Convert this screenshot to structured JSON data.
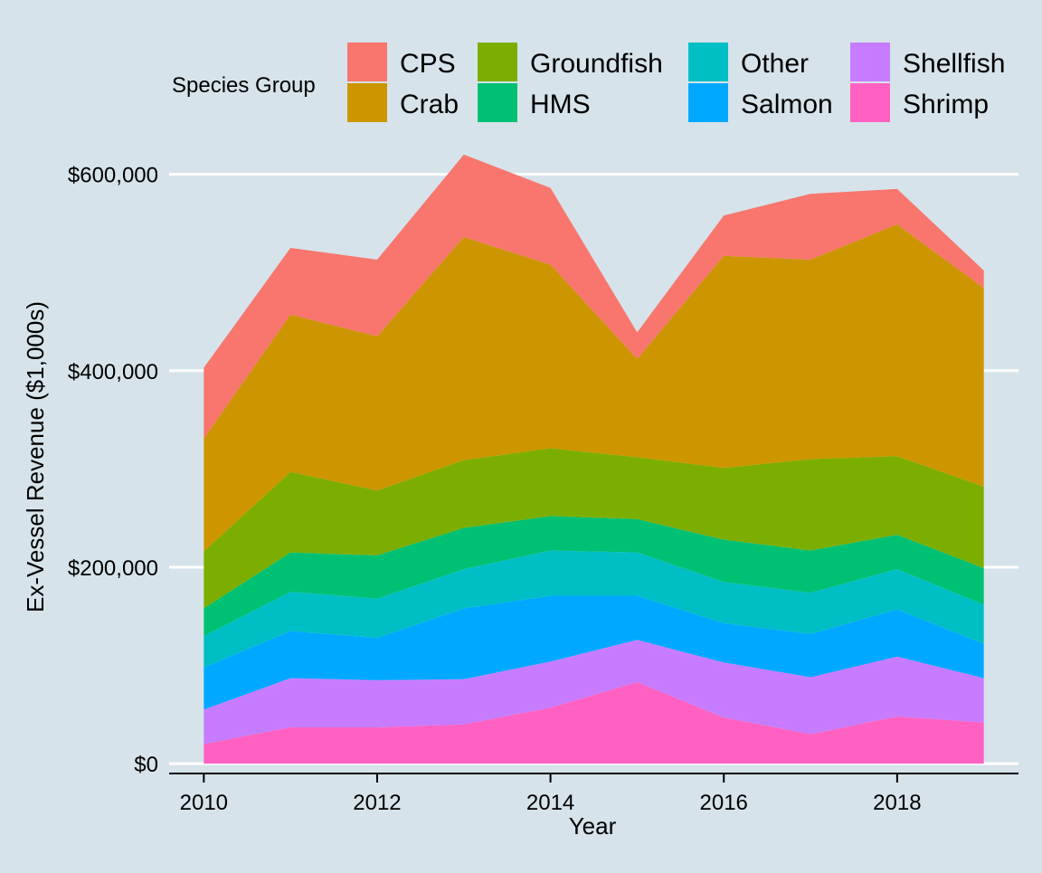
{
  "chart_data": {
    "type": "area",
    "stacked": true,
    "title": "",
    "xlabel": "Year",
    "ylabel": "Ex-Vessel Revenue ($1,000s)",
    "xlim": [
      2009.6,
      2019.4
    ],
    "ylim": [
      -10000,
      630000
    ],
    "x": [
      2010,
      2011,
      2012,
      2013,
      2014,
      2015,
      2016,
      2017,
      2018,
      2019
    ],
    "x_ticks": [
      2010,
      2012,
      2014,
      2016,
      2018
    ],
    "x_tick_labels": [
      "2010",
      "2012",
      "2014",
      "2016",
      "2018"
    ],
    "y_ticks": [
      0,
      200000,
      400000,
      600000
    ],
    "y_tick_labels": [
      "$0",
      "$200,000",
      "$400,000",
      "$600,000"
    ],
    "legend_title": "Species Group",
    "legend_position": "top",
    "series": [
      {
        "name": "Shrimp",
        "color": "#ff61c3",
        "values": [
          20000,
          37000,
          37000,
          40000,
          57000,
          83000,
          47000,
          30000,
          48000,
          42000
        ]
      },
      {
        "name": "Shellfish",
        "color": "#c77cff",
        "values": [
          35000,
          50000,
          48000,
          46000,
          47000,
          43000,
          56000,
          58000,
          61000,
          45000
        ]
      },
      {
        "name": "Salmon",
        "color": "#00a9ff",
        "values": [
          43000,
          48000,
          43000,
          72000,
          67000,
          45000,
          40000,
          44000,
          48000,
          35000
        ]
      },
      {
        "name": "Other",
        "color": "#00bfc4",
        "values": [
          32000,
          40000,
          40000,
          40000,
          46000,
          44000,
          42000,
          42000,
          41000,
          40000
        ]
      },
      {
        "name": "HMS",
        "color": "#00c073",
        "values": [
          28000,
          40000,
          44000,
          42000,
          35000,
          34000,
          43000,
          43000,
          35000,
          37000
        ]
      },
      {
        "name": "Groundfish",
        "color": "#7cae00",
        "values": [
          58000,
          82000,
          66000,
          69000,
          69000,
          63000,
          73000,
          93000,
          80000,
          83000
        ]
      },
      {
        "name": "Crab",
        "color": "#cd9600",
        "values": [
          115000,
          160000,
          157000,
          227000,
          187000,
          100000,
          216000,
          203000,
          236000,
          202000
        ]
      },
      {
        "name": "CPS",
        "color": "#f8766d",
        "values": [
          72000,
          68000,
          78000,
          84000,
          78000,
          27000,
          41000,
          67000,
          36000,
          18000
        ]
      }
    ],
    "legend_order": [
      "CPS",
      "Crab",
      "Groundfish",
      "HMS",
      "Other",
      "Salmon",
      "Shellfish",
      "Shrimp"
    ]
  }
}
